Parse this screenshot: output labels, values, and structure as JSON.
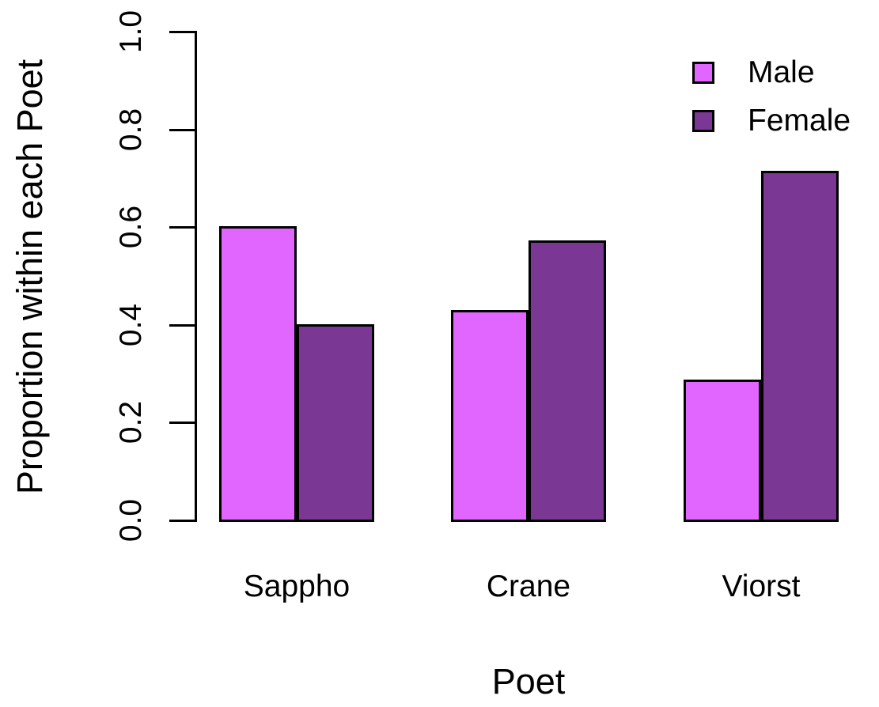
{
  "chart_data": {
    "type": "bar",
    "grouped": true,
    "title": "",
    "xlabel": "Poet",
    "ylabel": "Proportion within each Poet",
    "categories": [
      "Sappho",
      "Crane",
      "Viorst"
    ],
    "series": [
      {
        "name": "Male",
        "color": "#E066FF",
        "values": [
          0.6,
          0.429,
          0.286
        ]
      },
      {
        "name": "Female",
        "color": "#7A3794",
        "values": [
          0.4,
          0.571,
          0.714
        ]
      }
    ],
    "ylim": [
      0,
      1
    ],
    "yticks": [
      0.0,
      0.2,
      0.4,
      0.6,
      0.8,
      1.0
    ],
    "ytick_labels": [
      "0.0",
      "0.2",
      "0.4",
      "0.6",
      "0.8",
      "1.0"
    ],
    "bar_border_color": "#000000",
    "axis_color": "#000000",
    "text_color": "#000000",
    "background": "#FFFFFF",
    "grid": false,
    "legend_position": "top-right"
  }
}
